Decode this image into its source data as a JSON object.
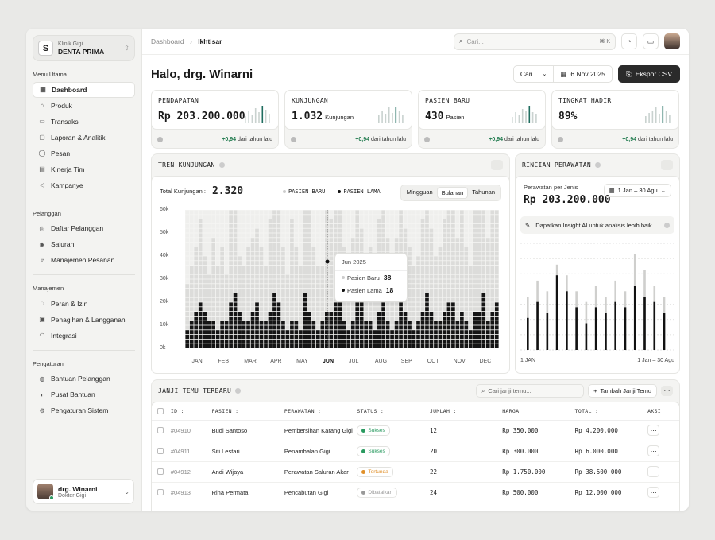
{
  "sidebar": {
    "clinic_sub": "Klinik Gigi",
    "clinic_name": "DENTA PRIMA",
    "clinic_logo": "S",
    "sections": [
      {
        "title": "Menu Utama",
        "items": [
          {
            "label": "Dashboard",
            "icon": "dashboard-icon",
            "glyph": "▦",
            "active": true
          },
          {
            "label": "Produk",
            "icon": "product-icon",
            "glyph": "⌂"
          },
          {
            "label": "Transaksi",
            "icon": "transaction-icon",
            "glyph": "▭"
          },
          {
            "label": "Laporan & Analitik",
            "icon": "report-icon",
            "glyph": "▢"
          },
          {
            "label": "Pesan",
            "icon": "message-icon",
            "glyph": "◯"
          },
          {
            "label": "Kinerja Tim",
            "icon": "team-icon",
            "glyph": "▤"
          },
          {
            "label": "Kampanye",
            "icon": "megaphone-icon",
            "glyph": "◁"
          }
        ]
      },
      {
        "title": "Pelanggan",
        "items": [
          {
            "label": "Daftar Pelanggan",
            "icon": "users-icon",
            "glyph": "◎"
          },
          {
            "label": "Saluran",
            "icon": "channel-icon",
            "glyph": "◉"
          },
          {
            "label": "Manajemen Pesanan",
            "icon": "cart-icon",
            "glyph": "▿"
          }
        ]
      },
      {
        "title": "Manajemen",
        "items": [
          {
            "label": "Peran & Izin",
            "icon": "role-icon",
            "glyph": "◌"
          },
          {
            "label": "Penagihan & Langganan",
            "icon": "billing-icon",
            "glyph": "▣"
          },
          {
            "label": "Integrasi",
            "icon": "integration-icon",
            "glyph": "◠"
          }
        ]
      },
      {
        "title": "Pengaturan",
        "items": [
          {
            "label": "Bantuan Pelanggan",
            "icon": "support-icon",
            "glyph": "◍"
          },
          {
            "label": "Pusat Bantuan",
            "icon": "help-icon",
            "glyph": "◐"
          },
          {
            "label": "Pengaturan Sistem",
            "icon": "settings-icon",
            "glyph": "⚙"
          }
        ]
      }
    ],
    "user_name": "drg. Winarni",
    "user_role": "Dokter Gigi"
  },
  "topbar": {
    "breadcrumb_root": "Dashboard",
    "breadcrumb_current": "Ikhtisar",
    "search_placeholder": "Cari...",
    "search_shortcut": "⌘ K"
  },
  "greeting": "Halo, drg. Winarni",
  "filters": {
    "search_label": "Cari...",
    "date": "6 Nov 2025",
    "export_label": "Ekspor CSV"
  },
  "kpis": [
    {
      "label": "PENDAPATAN",
      "value": "Rp 203.200.000",
      "unit": "",
      "change": "+0,94",
      "change_text": "dari tahun lalu"
    },
    {
      "label": "KUNJUNGAN",
      "value": "1.032",
      "unit": "Kunjungan",
      "change": "+0,94",
      "change_text": "dari tahun lalu"
    },
    {
      "label": "PASIEN BARU",
      "value": "430",
      "unit": "Pasien",
      "change": "+0,94",
      "change_text": "dari tahun lalu"
    },
    {
      "label": "TINGKAT HADIR",
      "value": "89%",
      "unit": "",
      "change": "+0,94",
      "change_text": "dari tahun lalu"
    }
  ],
  "trend": {
    "title": "TREN KUNJUNGAN",
    "total_label": "Total Kunjungan :",
    "total_value": "2.320",
    "legend_new": "PASIEN BARU",
    "legend_old": "PASIEN LAMA",
    "periods": [
      "Mingguan",
      "Bulanan",
      "Tahunan"
    ],
    "active_period": "Bulanan",
    "tooltip": {
      "month": "Jun 2025",
      "new_label": "Pasien Baru",
      "new_value": "38",
      "old_label": "Pasien Lama",
      "old_value": "18"
    }
  },
  "chart_data": [
    {
      "type": "bar",
      "name_hint": "tren-kunjungan",
      "categories": [
        "JAN",
        "FEB",
        "MAR",
        "APR",
        "MAY",
        "JUN",
        "JUL",
        "AUG",
        "SEP",
        "OCT",
        "NOV",
        "DEC"
      ],
      "active_category": "JUN",
      "yticks": [
        "60k",
        "50k",
        "40k",
        "30k",
        "20k",
        "10k",
        "0k"
      ],
      "ylim": [
        0,
        60000
      ],
      "columns_total": [
        14,
        18,
        22,
        28,
        20,
        16,
        24,
        18,
        22,
        16,
        30,
        36,
        20,
        18,
        22,
        24,
        26,
        22,
        18,
        28,
        52,
        34,
        22,
        16,
        28,
        22,
        18,
        40,
        34,
        22,
        18,
        18,
        30,
        28,
        34,
        38,
        22,
        18,
        24,
        32,
        26,
        18,
        22,
        18,
        28,
        36,
        24,
        20,
        24,
        34,
        26,
        22,
        18,
        20,
        28,
        40,
        26,
        20,
        22,
        28,
        34,
        30,
        24,
        30,
        22,
        18,
        30,
        32,
        40,
        24,
        30,
        34
      ],
      "columns_dark": [
        4,
        6,
        8,
        10,
        8,
        6,
        6,
        4,
        6,
        6,
        10,
        12,
        8,
        6,
        6,
        8,
        10,
        6,
        6,
        8,
        12,
        10,
        6,
        4,
        6,
        6,
        4,
        12,
        8,
        6,
        4,
        6,
        8,
        8,
        10,
        10,
        6,
        4,
        6,
        14,
        10,
        6,
        6,
        4,
        8,
        12,
        6,
        4,
        6,
        10,
        8,
        6,
        4,
        6,
        8,
        12,
        8,
        6,
        6,
        8,
        10,
        10,
        6,
        8,
        6,
        4,
        8,
        8,
        12,
        6,
        8,
        10
      ],
      "unit_per_cell": 2000
    },
    {
      "type": "bar",
      "name_hint": "rincian-perawatan",
      "series": [
        {
          "name": "total",
          "values": [
            50,
            65,
            55,
            80,
            70,
            55,
            45,
            60,
            50,
            65,
            55,
            90,
            75,
            60,
            50
          ]
        },
        {
          "name": "main",
          "values": [
            30,
            45,
            35,
            70,
            55,
            40,
            25,
            40,
            35,
            45,
            40,
            60,
            50,
            45,
            35
          ]
        }
      ],
      "ylim": [
        0,
        100
      ]
    }
  ],
  "breakdown": {
    "title": "RINCIAN PERAWATAN",
    "subtitle": "Perawatan per Jenis",
    "value": "Rp 203.200.000",
    "range": "1 Jan – 30 Agu",
    "insight": "Dapatkan Insight AI untuk analisis lebih baik",
    "axis_start": "1 JAN",
    "axis_end": "1 Jan – 30 Agu"
  },
  "appointments": {
    "title": "JANJI TEMU TERBARU",
    "search_placeholder": "Cari janji temu...",
    "add_label": "Tambah Janji Temu",
    "columns": [
      "ID :",
      "PASIEN :",
      "PERAWATAN :",
      "STATUS :",
      "JUMLAH :",
      "HARGA :",
      "TOTAL :",
      "AKSI"
    ],
    "rows": [
      {
        "id": "#04910",
        "patient": "Budi Santoso",
        "treatment": "Pembersihan Karang Gigi",
        "status": "Sukses",
        "status_color": "#2a9a60",
        "qty": "12",
        "price": "Rp 350.000",
        "total": "Rp 4.200.000"
      },
      {
        "id": "#04911",
        "patient": "Siti Lestari",
        "treatment": "Penambalan Gigi",
        "status": "Sukses",
        "status_color": "#2a9a60",
        "qty": "20",
        "price": "Rp 300.000",
        "total": "Rp 6.000.000"
      },
      {
        "id": "#04912",
        "patient": "Andi Wijaya",
        "treatment": "Perawatan Saluran Akar",
        "status": "Tertunda",
        "status_color": "#e0902a",
        "qty": "22",
        "price": "Rp 1.750.000",
        "total": "Rp 38.500.000"
      },
      {
        "id": "#04913",
        "patient": "Rina Permata",
        "treatment": "Pencabutan Gigi",
        "status": "Dibatalkan",
        "status_color": "#999999",
        "qty": "24",
        "price": "Rp 500.000",
        "total": "Rp 12.000.000"
      }
    ]
  }
}
